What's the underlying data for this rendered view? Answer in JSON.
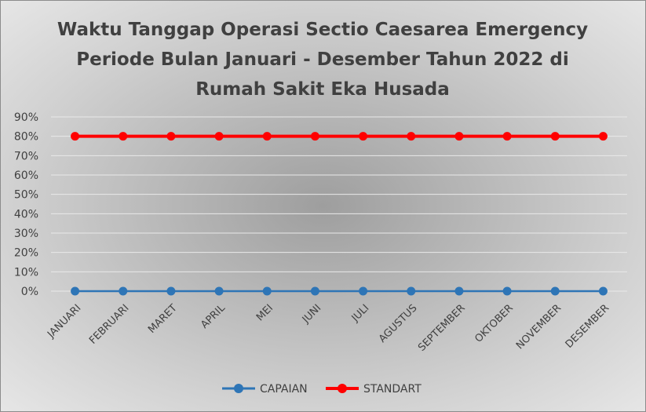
{
  "chart_data": {
    "type": "line",
    "title_lines": [
      "Waktu Tanggap Operasi Sectio Caesarea Emergency",
      "Periode Bulan Januari - Desember Tahun 2022 di",
      "Rumah Sakit Eka Husada"
    ],
    "categories": [
      "JANUARI",
      "FEBRUARI",
      "MARET",
      "APRIL",
      "MEI",
      "JUNI",
      "JULI",
      "AGUSTUS",
      "SEPTEMBER",
      "OKTOBER",
      "NOVEMBER",
      "DESEMBER"
    ],
    "series": [
      {
        "name": "CAPAIAN",
        "color": "#2e75b6",
        "values": [
          0,
          0,
          0,
          0,
          0,
          0,
          0,
          0,
          0,
          0,
          0,
          0
        ]
      },
      {
        "name": "STANDART",
        "color": "#ff0000",
        "values": [
          80,
          80,
          80,
          80,
          80,
          80,
          80,
          80,
          80,
          80,
          80,
          80
        ]
      }
    ],
    "y_unit": "%",
    "ylim": [
      0,
      90
    ],
    "y_ticks": [
      0,
      10,
      20,
      30,
      40,
      50,
      60,
      70,
      80,
      90
    ],
    "grid": true,
    "legend_position": "bottom"
  }
}
